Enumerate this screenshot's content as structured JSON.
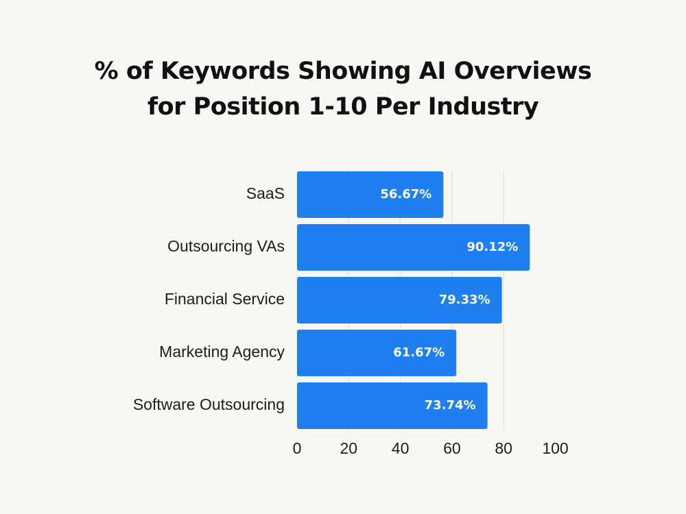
{
  "chart_data": {
    "type": "bar",
    "orientation": "horizontal",
    "title_lines": [
      "% of Keywords Showing AI Overviews",
      "for Position 1-10 Per Industry"
    ],
    "categories": [
      "SaaS",
      "Outsourcing VAs",
      "Financial Service",
      "Marketing Agency",
      "Software Outsourcing"
    ],
    "values": [
      56.67,
      90.12,
      79.33,
      61.67,
      73.74
    ],
    "value_labels": [
      "56.67%",
      "90.12%",
      "79.33%",
      "61.67%",
      "73.74%"
    ],
    "xticks": [
      0,
      20,
      40,
      60,
      80,
      100
    ],
    "xlim": [
      0,
      100
    ],
    "xlabel": "",
    "ylabel": "",
    "grid": "vertical",
    "legend": "none",
    "colors": {
      "bar": "#1f7ef0",
      "grid": "#dddddd",
      "background": "#f8f7f4"
    }
  }
}
